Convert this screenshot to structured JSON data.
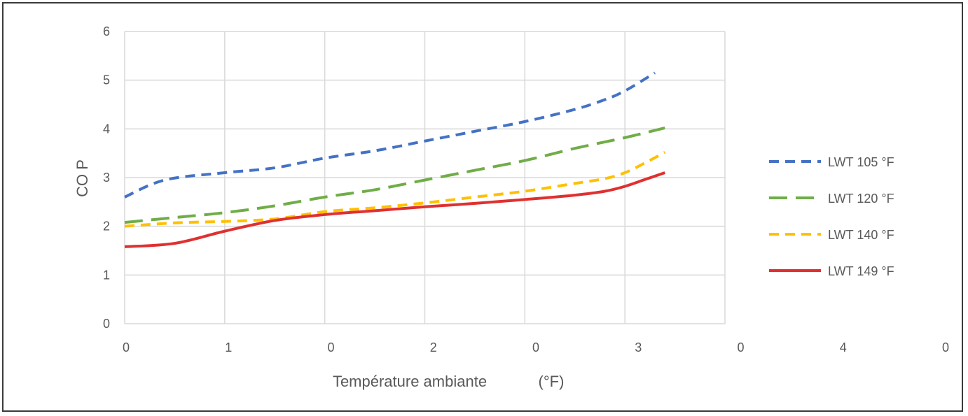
{
  "chart_data": {
    "type": "line",
    "ylabel": "CO P",
    "xlabel": "Température ambiante",
    "xlabel_unit": "(°F)",
    "ylim": [
      0,
      6
    ],
    "yticks": [
      "0",
      "1",
      "2",
      "3",
      "4",
      "5",
      "6"
    ],
    "xticks": [
      "0",
      "1",
      "0",
      "2",
      "0",
      "3",
      "0",
      "4",
      "0"
    ],
    "grid": true,
    "legend_position": "right",
    "series": [
      {
        "name": "LWT 105 °F",
        "color": "#4472c4",
        "dash": "short-dash",
        "points": [
          [
            0,
            2.6
          ],
          [
            0.4,
            2.95
          ],
          [
            1.0,
            3.1
          ],
          [
            1.5,
            3.2
          ],
          [
            2.0,
            3.4
          ],
          [
            2.5,
            3.55
          ],
          [
            3.0,
            3.75
          ],
          [
            3.5,
            3.95
          ],
          [
            4.0,
            4.15
          ],
          [
            4.5,
            4.4
          ],
          [
            4.8,
            4.6
          ],
          [
            5.0,
            4.78
          ],
          [
            5.3,
            5.15
          ]
        ]
      },
      {
        "name": "LWT 120 °F",
        "color": "#70ad47",
        "dash": "long-dash",
        "points": [
          [
            0,
            2.08
          ],
          [
            0.5,
            2.18
          ],
          [
            1.0,
            2.28
          ],
          [
            1.5,
            2.42
          ],
          [
            2.0,
            2.6
          ],
          [
            2.5,
            2.75
          ],
          [
            3.0,
            2.95
          ],
          [
            3.5,
            3.15
          ],
          [
            4.0,
            3.35
          ],
          [
            4.5,
            3.6
          ],
          [
            5.0,
            3.82
          ],
          [
            5.4,
            4.02
          ]
        ]
      },
      {
        "name": "LWT 140 °F",
        "color": "#ffc000",
        "dash": "short-dash",
        "points": [
          [
            0,
            2.0
          ],
          [
            0.5,
            2.07
          ],
          [
            1.0,
            2.1
          ],
          [
            1.5,
            2.15
          ],
          [
            2.0,
            2.3
          ],
          [
            2.5,
            2.38
          ],
          [
            3.0,
            2.48
          ],
          [
            3.5,
            2.6
          ],
          [
            4.0,
            2.72
          ],
          [
            4.5,
            2.88
          ],
          [
            4.8,
            2.98
          ],
          [
            5.0,
            3.1
          ],
          [
            5.2,
            3.3
          ],
          [
            5.4,
            3.52
          ]
        ]
      },
      {
        "name": "LWT 149 °F",
        "color": "#e03030",
        "dash": "solid",
        "points": [
          [
            0,
            1.58
          ],
          [
            0.5,
            1.65
          ],
          [
            1.0,
            1.9
          ],
          [
            1.5,
            2.12
          ],
          [
            2.0,
            2.24
          ],
          [
            2.5,
            2.32
          ],
          [
            3.0,
            2.4
          ],
          [
            3.5,
            2.47
          ],
          [
            4.0,
            2.55
          ],
          [
            4.5,
            2.64
          ],
          [
            4.8,
            2.72
          ],
          [
            5.0,
            2.82
          ],
          [
            5.2,
            2.96
          ],
          [
            5.4,
            3.1
          ]
        ]
      }
    ]
  }
}
